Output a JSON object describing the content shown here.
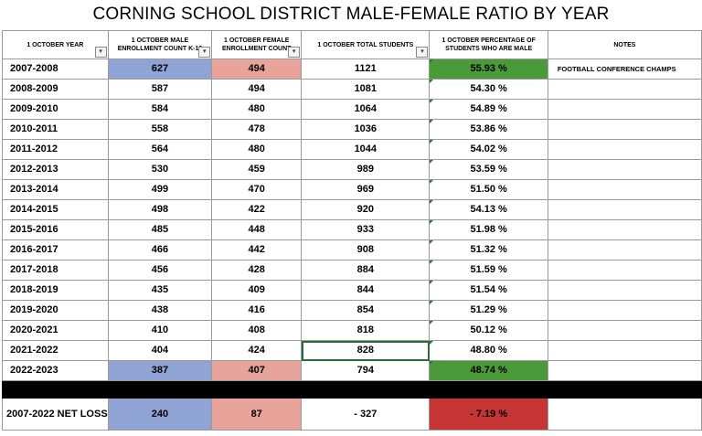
{
  "title": "CORNING SCHOOL DISTRICT MALE-FEMALE RATIO BY YEAR",
  "headers": {
    "year": "1 OCTOBER YEAR",
    "male": "1 OCTOBER MALE ENROLLMENT COUNT K-12",
    "female": "1 OCTOBER FEMALE ENROLLMENT COUNT",
    "total": "1 OCTOBER TOTAL STUDENTS",
    "pct": "1 OCTOBER PERCENTAGE OF STUDENTS WHO ARE MALE",
    "notes": "NOTES"
  },
  "rows": [
    {
      "year": "2007-2008",
      "male": "627",
      "female": "494",
      "total": "1121",
      "pct": "55.93 %",
      "notes": "FOOTBALL CONFERENCE CHAMPS"
    },
    {
      "year": "2008-2009",
      "male": "587",
      "female": "494",
      "total": "1081",
      "pct": "54.30 %",
      "notes": ""
    },
    {
      "year": "2009-2010",
      "male": "584",
      "female": "480",
      "total": "1064",
      "pct": "54.89 %",
      "notes": ""
    },
    {
      "year": "2010-2011",
      "male": "558",
      "female": "478",
      "total": "1036",
      "pct": "53.86 %",
      "notes": ""
    },
    {
      "year": "2011-2012",
      "male": "564",
      "female": "480",
      "total": "1044",
      "pct": "54.02 %",
      "notes": ""
    },
    {
      "year": "2012-2013",
      "male": "530",
      "female": "459",
      "total": "989",
      "pct": "53.59 %",
      "notes": ""
    },
    {
      "year": "2013-2014",
      "male": "499",
      "female": "470",
      "total": "969",
      "pct": "51.50 %",
      "notes": ""
    },
    {
      "year": "2014-2015",
      "male": "498",
      "female": "422",
      "total": "920",
      "pct": "54.13 %",
      "notes": ""
    },
    {
      "year": "2015-2016",
      "male": "485",
      "female": "448",
      "total": "933",
      "pct": "51.98 %",
      "notes": ""
    },
    {
      "year": "2016-2017",
      "male": "466",
      "female": "442",
      "total": "908",
      "pct": "51.32 %",
      "notes": ""
    },
    {
      "year": "2017-2018",
      "male": "456",
      "female": "428",
      "total": "884",
      "pct": "51.59 %",
      "notes": ""
    },
    {
      "year": "2018-2019",
      "male": "435",
      "female": "409",
      "total": "844",
      "pct": "51.54 %",
      "notes": ""
    },
    {
      "year": "2019-2020",
      "male": "438",
      "female": "416",
      "total": "854",
      "pct": "51.29 %",
      "notes": ""
    },
    {
      "year": "2020-2021",
      "male": "410",
      "female": "408",
      "total": "818",
      "pct": "50.12 %",
      "notes": ""
    },
    {
      "year": "2021-2022",
      "male": "404",
      "female": "424",
      "total": "828",
      "pct": "48.80 %",
      "notes": ""
    },
    {
      "year": "2022-2023",
      "male": "387",
      "female": "407",
      "total": "794",
      "pct": "48.74 %",
      "notes": ""
    }
  ],
  "net": {
    "label": "2007-2022 NET LOSS",
    "male": "240",
    "female": "87",
    "total": "- 327",
    "pct": "- 7.19 %",
    "notes": ""
  },
  "colors": {
    "male_highlight": "#8fa4d4",
    "female_highlight": "#e8a49a",
    "pct_high": "#4a9a3a",
    "pct_loss": "#c73434"
  }
}
